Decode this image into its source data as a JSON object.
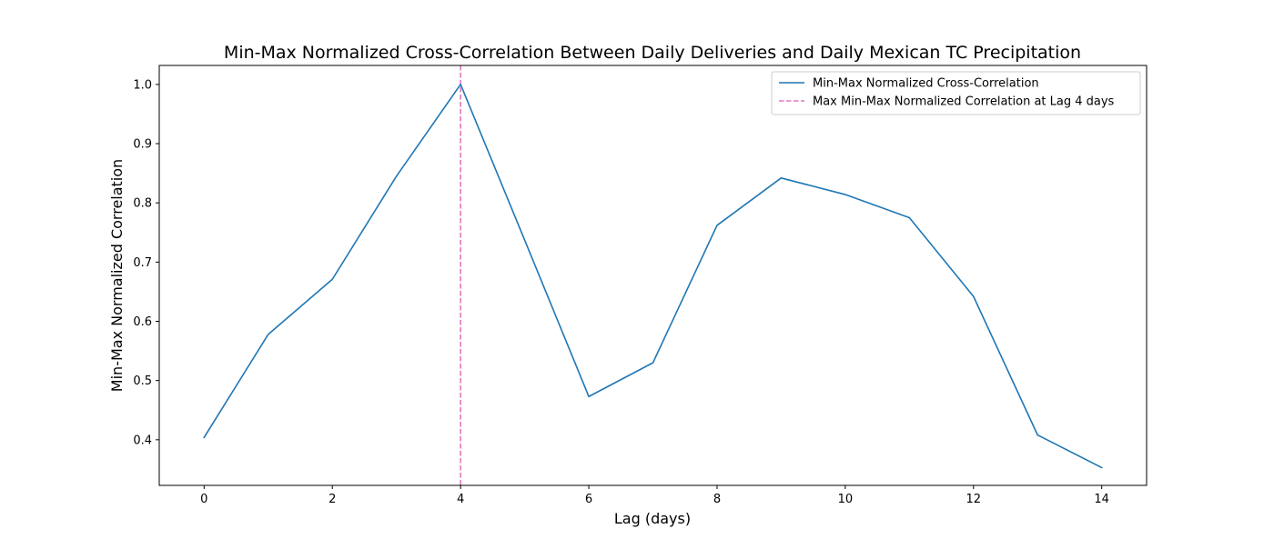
{
  "chart_data": {
    "type": "line",
    "title": "Min-Max Normalized Cross-Correlation Between Daily Deliveries and Daily Mexican TC Precipitation",
    "xlabel": "Lag (days)",
    "ylabel": "Min-Max Normalized Correlation",
    "xlim": [
      -0.7,
      14.7
    ],
    "ylim": [
      0.323,
      1.032
    ],
    "x_ticks": [
      0,
      2,
      4,
      6,
      8,
      10,
      12,
      14
    ],
    "y_ticks": [
      0.4,
      0.5,
      0.6,
      0.7,
      0.8,
      0.9,
      1.0
    ],
    "x_tick_labels": [
      "0",
      "2",
      "4",
      "6",
      "8",
      "10",
      "12",
      "14"
    ],
    "y_tick_labels": [
      "0.4",
      "0.5",
      "0.6",
      "0.7",
      "0.8",
      "0.9",
      "1.0"
    ],
    "grid": false,
    "legend_placement": "upper right",
    "series": [
      {
        "name": "Min-Max Normalized Cross-Correlation",
        "color": "#1f77b4",
        "style": "solid",
        "x": [
          0,
          1,
          2,
          3,
          4,
          5,
          6,
          7,
          8,
          9,
          10,
          11,
          12,
          13,
          14
        ],
        "values": [
          0.404,
          0.578,
          0.671,
          0.845,
          1.0,
          0.737,
          0.473,
          0.53,
          0.762,
          0.842,
          0.814,
          0.775,
          0.642,
          0.408,
          0.353
        ]
      }
    ],
    "reference_lines": [
      {
        "name": "Max Min-Max Normalized Correlation at Lag 4 days",
        "orientation": "vertical",
        "x": 4,
        "color": "#e377c2",
        "style": "dashed"
      }
    ]
  }
}
